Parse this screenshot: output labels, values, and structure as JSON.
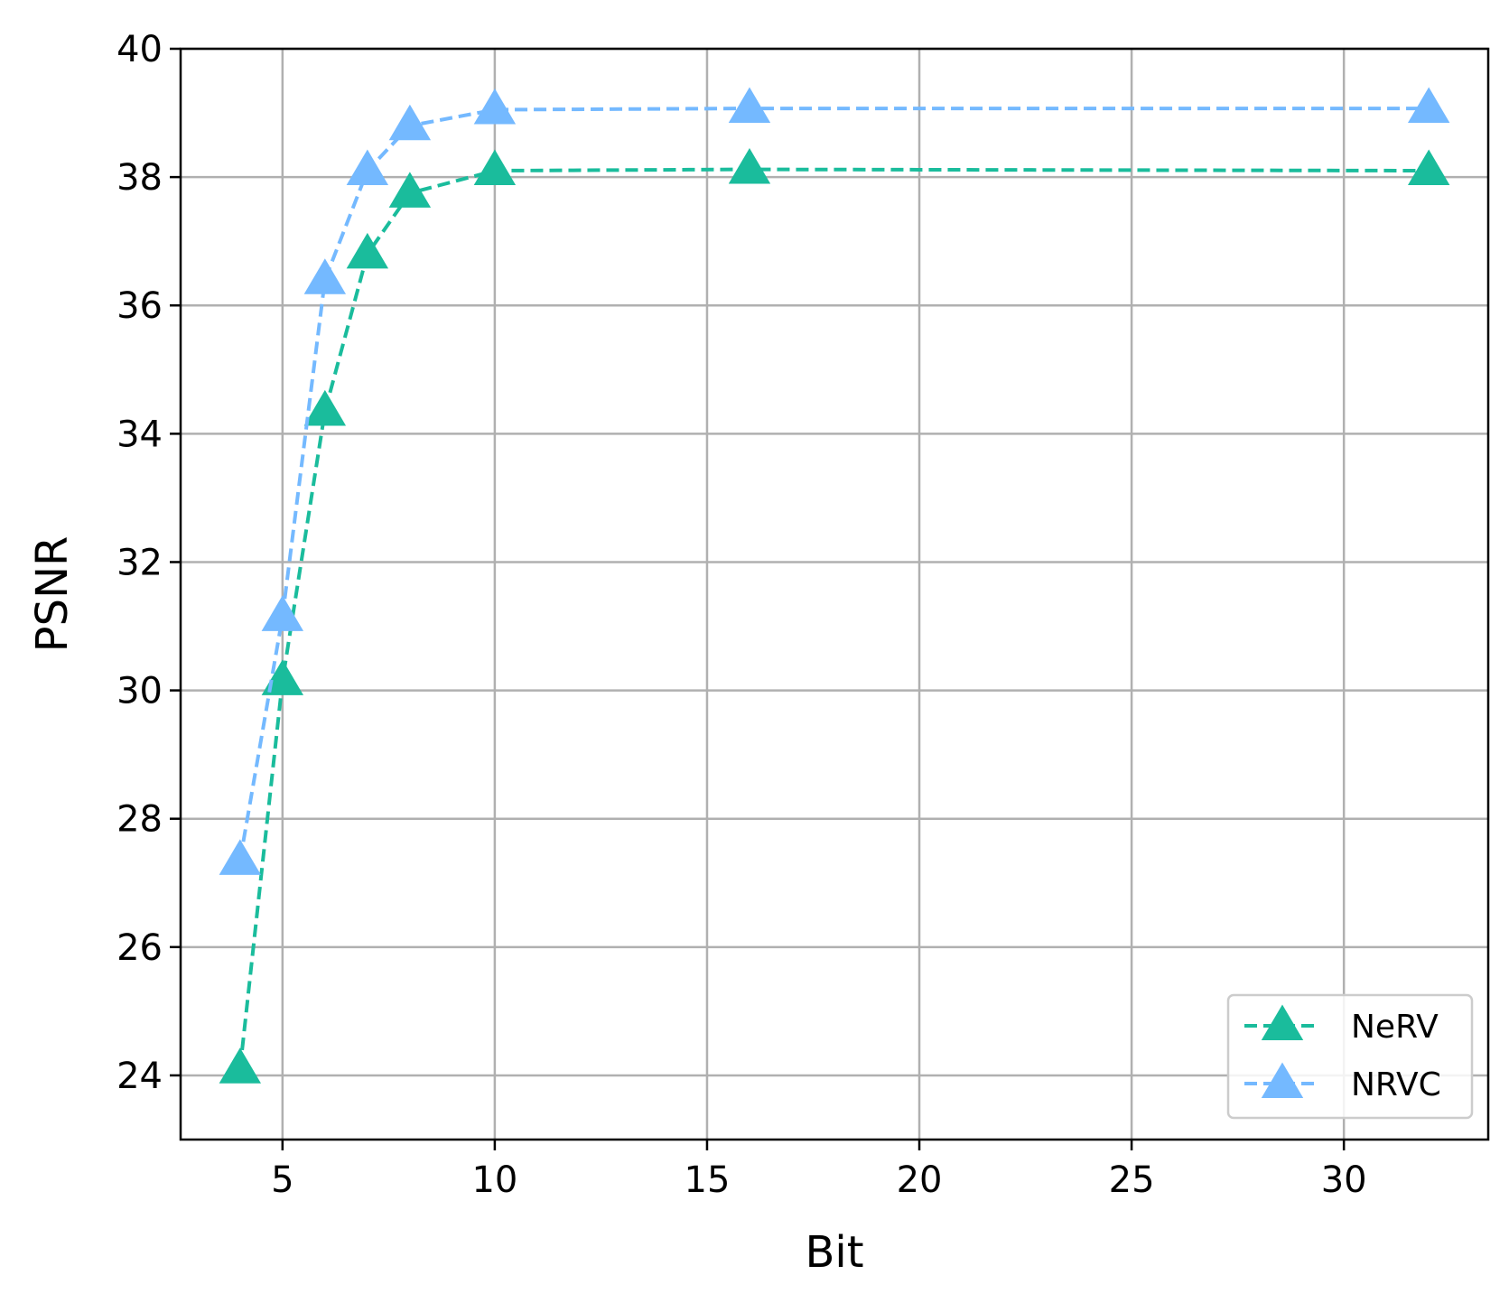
{
  "chart_data": {
    "type": "line",
    "xlabel": "Bit",
    "ylabel": "PSNR",
    "xlim": [
      2.6,
      33.4
    ],
    "ylim": [
      23,
      40
    ],
    "xticks": [
      5,
      10,
      15,
      20,
      25,
      30
    ],
    "yticks": [
      24,
      26,
      28,
      30,
      32,
      34,
      36,
      38,
      40
    ],
    "grid": true,
    "legend_position": "lower-right",
    "line_style": "dashed",
    "marker": "triangle-up",
    "series": [
      {
        "name": "NeRV",
        "color": "#1abc9c",
        "x": [
          4,
          5,
          6,
          7,
          8,
          10,
          16,
          32
        ],
        "y": [
          24.1,
          30.15,
          34.35,
          36.8,
          37.75,
          38.1,
          38.12,
          38.1
        ]
      },
      {
        "name": "NRVC",
        "color": "#74b9ff",
        "x": [
          4,
          5,
          6,
          7,
          8,
          10,
          16,
          32
        ],
        "y": [
          27.35,
          31.15,
          36.4,
          38.1,
          38.8,
          39.05,
          39.07,
          39.07
        ]
      }
    ]
  }
}
